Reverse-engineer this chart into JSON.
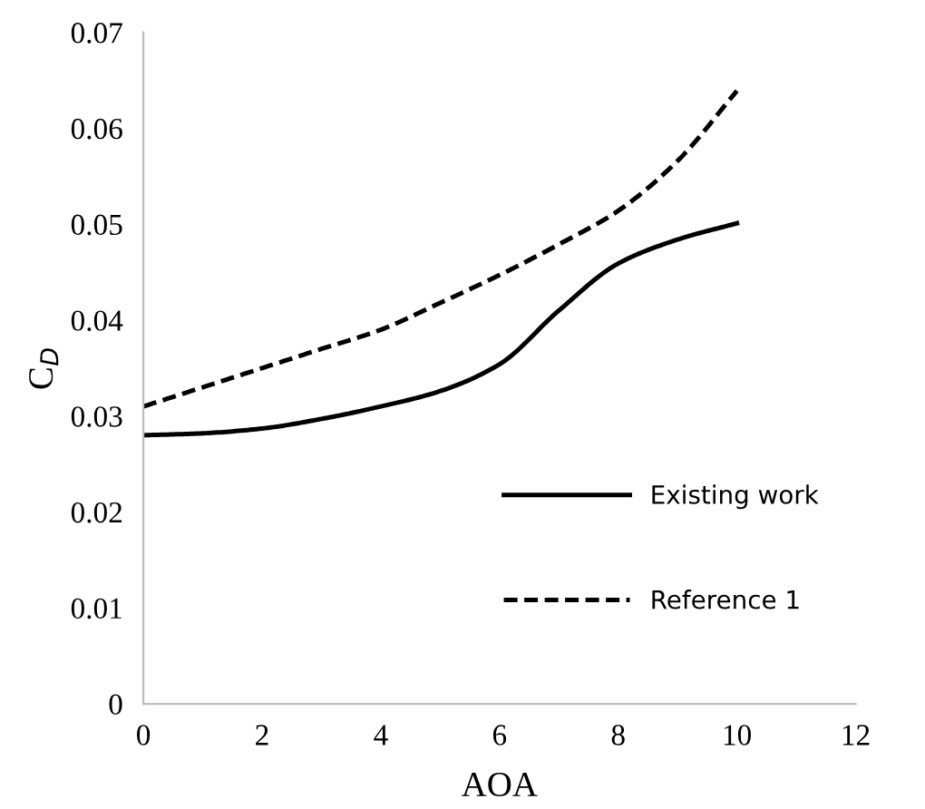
{
  "chart_data": {
    "type": "line",
    "xlabel": "AOA",
    "ylabel": "C$_{D}$",
    "x": [
      0,
      1,
      2,
      3,
      4,
      5,
      6,
      7,
      8,
      9,
      10
    ],
    "series": [
      {
        "name": "Existing work",
        "color": "#000000",
        "line_style": "solid",
        "values": [
          0.028,
          0.0282,
          0.0287,
          0.0297,
          0.031,
          0.0326,
          0.0354,
          0.041,
          0.0459,
          0.0484,
          0.0501
        ]
      },
      {
        "name": "Reference 1",
        "color": "#000000",
        "line_style": "dashed",
        "values": [
          0.031,
          0.033,
          0.035,
          0.037,
          0.039,
          0.0418,
          0.0447,
          0.0479,
          0.0514,
          0.0566,
          0.0639
        ]
      }
    ],
    "xlim": [
      0,
      12
    ],
    "xticks": [
      0,
      2,
      4,
      6,
      8,
      10,
      12
    ],
    "ylim": [
      0,
      0.07
    ],
    "yticks": [
      {
        "value": 0,
        "label": "0"
      },
      {
        "value": 0.01,
        "label": "0.01"
      },
      {
        "value": 0.02,
        "label": "0.02"
      },
      {
        "value": 0.03,
        "label": "0.03"
      },
      {
        "value": 0.04,
        "label": "0.04"
      },
      {
        "value": 0.05,
        "label": "0.05"
      },
      {
        "value": 0.06,
        "label": "0.06"
      },
      {
        "value": 0.07,
        "label": "0.07"
      }
    ],
    "grid": false,
    "legend": "bottom right",
    "marker": "none"
  }
}
